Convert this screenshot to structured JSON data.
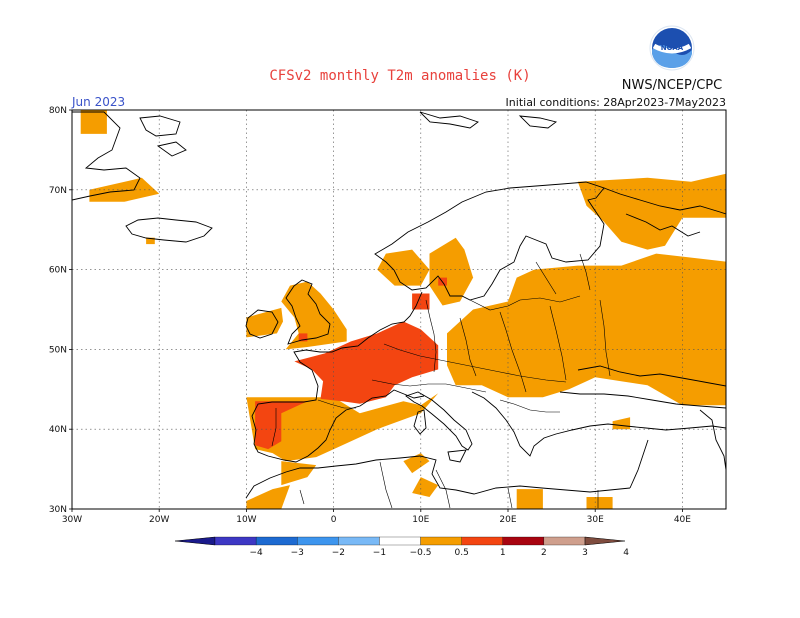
{
  "title": "CFSv2 monthly T2m anomalies (K)",
  "agency": "NWS/NCEP/CPC",
  "logo_text": "NOAA",
  "month_label": "Jun 2023",
  "initial_conditions": "Initial conditions: 28Apr2023-7May2023",
  "map": {
    "lon_range": [
      -30,
      45
    ],
    "lat_range": [
      30,
      80
    ],
    "lon_ticks": [
      "30W",
      "20W",
      "10W",
      "0",
      "10E",
      "20E",
      "30E",
      "40E"
    ],
    "lat_ticks": [
      "80N",
      "70N",
      "60N",
      "50N",
      "40N",
      "30N"
    ],
    "anomaly_regions": [
      {
        "name": "greenland-east",
        "level": "0.5-1",
        "lonlat": [
          [
            -29,
            80
          ],
          [
            -26,
            80
          ],
          [
            -26,
            77
          ],
          [
            -29,
            77
          ]
        ]
      },
      {
        "name": "greenland-southeast",
        "level": "0.5-1",
        "lonlat": [
          [
            -28,
            70
          ],
          [
            -22,
            71.5
          ],
          [
            -20,
            69.5
          ],
          [
            -24,
            68.5
          ],
          [
            -28,
            68.5
          ]
        ]
      },
      {
        "name": "iceland-spot",
        "level": "0.5-1",
        "lonlat": [
          [
            -21.5,
            64
          ],
          [
            -20.5,
            64
          ],
          [
            -20.5,
            63.2
          ],
          [
            -21.5,
            63.2
          ]
        ]
      },
      {
        "name": "arctic-russia",
        "level": "0.5-1",
        "lonlat": [
          [
            28,
            71
          ],
          [
            36,
            71.5
          ],
          [
            41,
            71
          ],
          [
            45,
            72
          ],
          [
            45,
            66.5
          ],
          [
            40,
            66.5
          ],
          [
            38,
            63
          ],
          [
            36,
            62.5
          ],
          [
            33,
            63.5
          ],
          [
            31,
            66
          ],
          [
            29,
            68
          ]
        ]
      },
      {
        "name": "central-east-europe",
        "level": "0.5-1",
        "lonlat": [
          [
            13,
            52
          ],
          [
            16,
            55
          ],
          [
            20,
            56
          ],
          [
            21,
            59
          ],
          [
            23,
            60
          ],
          [
            28,
            60.5
          ],
          [
            33,
            60.5
          ],
          [
            37,
            62
          ],
          [
            45,
            61
          ],
          [
            45,
            43
          ],
          [
            40,
            43
          ],
          [
            36,
            45.5
          ],
          [
            30,
            46.5
          ],
          [
            27,
            45
          ],
          [
            24,
            44
          ],
          [
            20,
            44
          ],
          [
            17,
            45.5
          ],
          [
            14,
            45.5
          ],
          [
            13,
            48
          ]
        ]
      },
      {
        "name": "sweden-south",
        "level": "0.5-1",
        "lonlat": [
          [
            11,
            62
          ],
          [
            14,
            64
          ],
          [
            15,
            62.5
          ],
          [
            16,
            59
          ],
          [
            14.5,
            56
          ],
          [
            12.5,
            55.5
          ],
          [
            11,
            58
          ]
        ]
      },
      {
        "name": "norway-south",
        "level": "0.5-1",
        "lonlat": [
          [
            6,
            62
          ],
          [
            9,
            62.5
          ],
          [
            11,
            60
          ],
          [
            10,
            58
          ],
          [
            7,
            58
          ],
          [
            5,
            60
          ]
        ]
      },
      {
        "name": "great-britain",
        "level": "0.5-1",
        "lonlat": [
          [
            -5,
            58
          ],
          [
            -3,
            58.5
          ],
          [
            -1.5,
            57
          ],
          [
            0,
            55
          ],
          [
            1.5,
            52.5
          ],
          [
            1.5,
            51
          ],
          [
            -3,
            50.3
          ],
          [
            -5.5,
            50
          ],
          [
            -4,
            52
          ],
          [
            -4.5,
            54
          ],
          [
            -6,
            56
          ]
        ]
      },
      {
        "name": "ireland",
        "level": "0.5-1",
        "lonlat": [
          [
            -10,
            54
          ],
          [
            -6,
            55.2
          ],
          [
            -5.8,
            53.5
          ],
          [
            -6.5,
            52
          ],
          [
            -10,
            51.5
          ]
        ]
      },
      {
        "name": "iberia-south-italy-balkans",
        "level": "0.5-1",
        "lonlat": [
          [
            -10,
            44
          ],
          [
            0,
            44
          ],
          [
            3,
            42
          ],
          [
            8,
            43.5
          ],
          [
            10,
            43
          ],
          [
            12,
            44.5
          ],
          [
            10,
            42
          ],
          [
            5,
            40
          ],
          [
            1,
            38
          ],
          [
            -2,
            36.5
          ],
          [
            -5.5,
            36
          ],
          [
            -7,
            37
          ],
          [
            -9,
            37.5
          ]
        ]
      },
      {
        "name": "morocco-north",
        "level": "0.5-1",
        "lonlat": [
          [
            -6,
            36
          ],
          [
            -2,
            35.5
          ],
          [
            -3,
            34
          ],
          [
            -6,
            33
          ]
        ]
      },
      {
        "name": "morocco-atlas",
        "level": "0.5-1",
        "lonlat": [
          [
            -10,
            31
          ],
          [
            -7,
            32.5
          ],
          [
            -5,
            33
          ],
          [
            -6,
            30
          ],
          [
            -10,
            30
          ]
        ]
      },
      {
        "name": "algeria-coast",
        "level": "0.5-1",
        "lonlat": [
          [
            8,
            36
          ],
          [
            10,
            37
          ],
          [
            11,
            36
          ],
          [
            9,
            34.5
          ]
        ]
      },
      {
        "name": "tunisia-libya",
        "level": "0.5-1",
        "lonlat": [
          [
            10,
            34
          ],
          [
            12,
            33
          ],
          [
            11,
            31.5
          ],
          [
            9,
            32
          ]
        ]
      },
      {
        "name": "libya-east",
        "level": "0.5-1",
        "lonlat": [
          [
            21,
            32.5
          ],
          [
            24,
            32.5
          ],
          [
            24,
            30
          ],
          [
            21,
            30
          ]
        ]
      },
      {
        "name": "egypt-north",
        "level": "0.5-1",
        "lonlat": [
          [
            29,
            31.5
          ],
          [
            32,
            31.5
          ],
          [
            32,
            30
          ],
          [
            29,
            30
          ]
        ]
      },
      {
        "name": "turkey-coast",
        "level": "0.5-1",
        "lonlat": [
          [
            32,
            41
          ],
          [
            34,
            41.5
          ],
          [
            34,
            40
          ],
          [
            32,
            40
          ]
        ]
      },
      {
        "name": "france-germany-core",
        "level": "1-2",
        "lonlat": [
          [
            -4.5,
            48.5
          ],
          [
            -1,
            49.5
          ],
          [
            2,
            51
          ],
          [
            5,
            52
          ],
          [
            8,
            53.5
          ],
          [
            10,
            52.5
          ],
          [
            12,
            50.5
          ],
          [
            12,
            47.5
          ],
          [
            9,
            46.5
          ],
          [
            7,
            45.5
          ],
          [
            6,
            44
          ],
          [
            3,
            43.2
          ],
          [
            1,
            43.5
          ],
          [
            -1.5,
            43.8
          ],
          [
            -1.2,
            46
          ],
          [
            -2.5,
            47.5
          ]
        ]
      },
      {
        "name": "iberia-west",
        "level": "1-2",
        "lonlat": [
          [
            -9,
            43.5
          ],
          [
            -3,
            43.5
          ],
          [
            -6,
            42
          ],
          [
            -6,
            38.5
          ],
          [
            -7.5,
            37.5
          ],
          [
            -9,
            38
          ]
        ]
      },
      {
        "name": "britain-southwest",
        "level": "1-2",
        "lonlat": [
          [
            -4,
            52
          ],
          [
            -3,
            52
          ],
          [
            -3,
            51
          ],
          [
            -4,
            51
          ]
        ]
      },
      {
        "name": "denmark-baltic",
        "level": "1-2",
        "lonlat": [
          [
            9,
            57
          ],
          [
            11,
            57
          ],
          [
            11,
            55
          ],
          [
            9,
            55
          ]
        ]
      },
      {
        "name": "sweden-spot",
        "level": "1-2",
        "lonlat": [
          [
            12,
            59
          ],
          [
            13,
            59
          ],
          [
            13,
            58
          ],
          [
            12,
            58
          ]
        ]
      }
    ]
  },
  "colorbar": {
    "tick_labels": [
      "−4",
      "−3",
      "−2",
      "−1",
      "−0.5",
      "0.5",
      "1",
      "2",
      "3",
      "4"
    ],
    "colors": [
      "#1a1a8c",
      "#3d37c4",
      "#1d6ad1",
      "#3d95ee",
      "#79b9f6",
      "#ffffff",
      "#f59d00",
      "#f34511",
      "#a80410",
      "#cf9f8d",
      "#7f4c3e"
    ]
  },
  "palette": {
    "0.5-1": "#f59d00",
    "1-2": "#f34511",
    "gridline": "#555555",
    "title": "#e8413c",
    "month": "#3a53c9"
  }
}
